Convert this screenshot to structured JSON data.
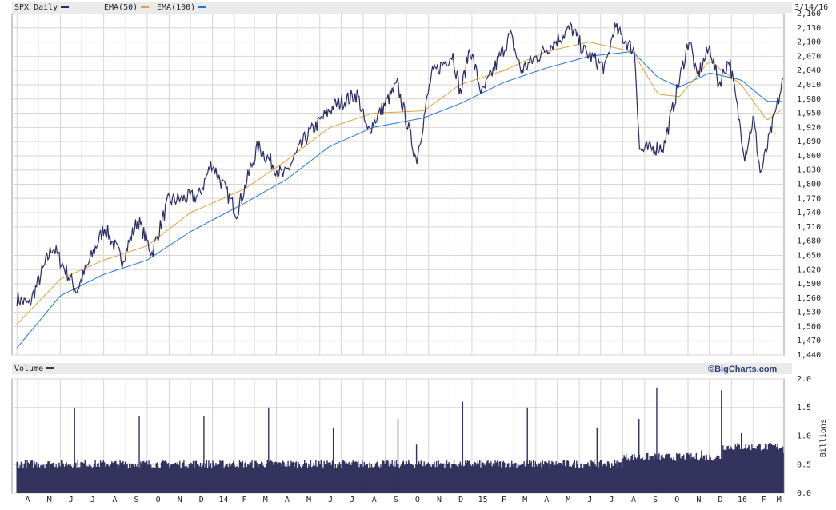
{
  "colors": {
    "price": "#2b2b63",
    "ema50": "#e0a040",
    "ema100": "#2176d9",
    "volume": "#33335e",
    "grid": "#d6d6d6",
    "header_bg": "#eaeaea",
    "plot_bg": "#ffffff"
  },
  "chart_data": [
    {
      "type": "line",
      "header": {
        "series_label": "SPX Daily",
        "ema50_label": "EMA(50)",
        "ema100_label": "EMA(100)",
        "date": "3/14/16"
      },
      "ylim": [
        1440,
        2160
      ],
      "y_ticks": [
        "1,440",
        "1,470",
        "1,500",
        "1,530",
        "1,560",
        "1,590",
        "1,620",
        "1,650",
        "1,680",
        "1,710",
        "1,740",
        "1,770",
        "1,800",
        "1,830",
        "1,860",
        "1,890",
        "1,920",
        "1,950",
        "1,980",
        "2,010",
        "2,040",
        "2,070",
        "2,100",
        "2,130",
        "2,160"
      ],
      "x_ticks": [
        "A",
        "M",
        "J",
        "J",
        "A",
        "S",
        "O",
        "N",
        "D",
        "14",
        "F",
        "M",
        "A",
        "M",
        "J",
        "J",
        "A",
        "S",
        "O",
        "N",
        "D",
        "15",
        "F",
        "M",
        "A",
        "M",
        "J",
        "J",
        "A",
        "S",
        "O",
        "N",
        "D",
        "16",
        "F",
        "M"
      ],
      "grid": true,
      "series": [
        {
          "name": "SPX Daily",
          "x": [
            "2013-04-01",
            "2013-04-18",
            "2013-05-21",
            "2013-06-24",
            "2013-08-02",
            "2013-08-27",
            "2013-09-18",
            "2013-10-08",
            "2013-10-31",
            "2013-12-13",
            "2013-12-31",
            "2014-02-04",
            "2014-03-06",
            "2014-04-11",
            "2014-05-13",
            "2014-06-20",
            "2014-07-24",
            "2014-08-07",
            "2014-09-18",
            "2014-10-15",
            "2014-11-05",
            "2014-12-05",
            "2014-12-16",
            "2014-12-29",
            "2015-01-15",
            "2015-02-24",
            "2015-03-11",
            "2015-05-21",
            "2015-06-08",
            "2015-07-08",
            "2015-07-20",
            "2015-08-18",
            "2015-08-25",
            "2015-09-28",
            "2015-11-03",
            "2015-11-13",
            "2015-12-02",
            "2015-12-14",
            "2015-12-29",
            "2016-01-20",
            "2016-02-01",
            "2016-02-11",
            "2016-03-14"
          ],
          "values": [
            1560,
            1545,
            1670,
            1575,
            1710,
            1640,
            1725,
            1655,
            1765,
            1775,
            1845,
            1740,
            1880,
            1815,
            1900,
            1965,
            1990,
            1910,
            2010,
            1850,
            2030,
            2075,
            1990,
            2090,
            1990,
            2115,
            2040,
            2130,
            2080,
            2045,
            2130,
            2080,
            1870,
            1880,
            2110,
            2025,
            2090,
            2010,
            2065,
            1860,
            1940,
            1820,
            2020
          ]
        },
        {
          "name": "EMA(50)",
          "x": [
            "2013-04-01",
            "2013-06-01",
            "2013-08-01",
            "2013-10-01",
            "2013-12-01",
            "2014-02-15",
            "2014-04-15",
            "2014-06-15",
            "2014-08-15",
            "2014-10-25",
            "2014-12-15",
            "2015-02-15",
            "2015-04-15",
            "2015-06-15",
            "2015-08-15",
            "2015-09-20",
            "2015-10-20",
            "2015-12-01",
            "2016-01-15",
            "2016-02-20",
            "2016-03-14"
          ],
          "values": [
            1505,
            1600,
            1640,
            1670,
            1740,
            1790,
            1850,
            1920,
            1950,
            1955,
            2010,
            2040,
            2080,
            2100,
            2080,
            1990,
            1985,
            2060,
            2010,
            1935,
            1960
          ]
        },
        {
          "name": "EMA(100)",
          "x": [
            "2013-04-01",
            "2013-06-01",
            "2013-08-01",
            "2013-10-01",
            "2013-12-01",
            "2014-02-15",
            "2014-04-15",
            "2014-06-15",
            "2014-08-15",
            "2014-10-25",
            "2014-12-15",
            "2015-02-15",
            "2015-04-15",
            "2015-06-15",
            "2015-08-15",
            "2015-09-20",
            "2015-10-20",
            "2015-12-01",
            "2016-01-15",
            "2016-02-20",
            "2016-03-14"
          ],
          "values": [
            1455,
            1565,
            1610,
            1640,
            1700,
            1760,
            1810,
            1880,
            1920,
            1940,
            1970,
            2015,
            2045,
            2070,
            2080,
            2025,
            2005,
            2035,
            2020,
            1975,
            1975
          ]
        }
      ]
    },
    {
      "type": "bar",
      "header": {
        "series_label": "Volume",
        "brand": "©BigCharts.com"
      },
      "ylabel": "Billions",
      "ylim": [
        0.0,
        2.0
      ],
      "y_ticks": [
        "0.0",
        "0.5",
        "1.0",
        "1.5",
        "2.0"
      ],
      "x_ticks": [
        "A",
        "M",
        "J",
        "J",
        "A",
        "S",
        "O",
        "N",
        "D",
        "14",
        "F",
        "M",
        "A",
        "M",
        "J",
        "J",
        "A",
        "S",
        "O",
        "N",
        "D",
        "15",
        "F",
        "M",
        "A",
        "M",
        "J",
        "J",
        "A",
        "S",
        "O",
        "N",
        "D",
        "16",
        "F",
        "M"
      ],
      "grid": true,
      "series": [
        {
          "name": "Volume",
          "x": [
            "2013-04-01",
            "2013-06-21",
            "2013-09-20",
            "2013-12-20",
            "2014-01-02",
            "2014-03-21",
            "2014-06-20",
            "2014-08-01",
            "2014-09-19",
            "2014-10-15",
            "2014-12-19",
            "2015-03-20",
            "2015-06-26",
            "2015-08-24",
            "2015-09-18",
            "2015-11-20",
            "2015-12-18",
            "2016-01-15",
            "2016-03-14"
          ],
          "values": [
            0.55,
            1.5,
            1.35,
            1.35,
            0.35,
            1.5,
            1.15,
            0.2,
            1.3,
            0.85,
            1.6,
            1.5,
            1.15,
            1.3,
            1.85,
            0.75,
            1.8,
            1.05,
            0.7
          ]
        }
      ]
    }
  ]
}
